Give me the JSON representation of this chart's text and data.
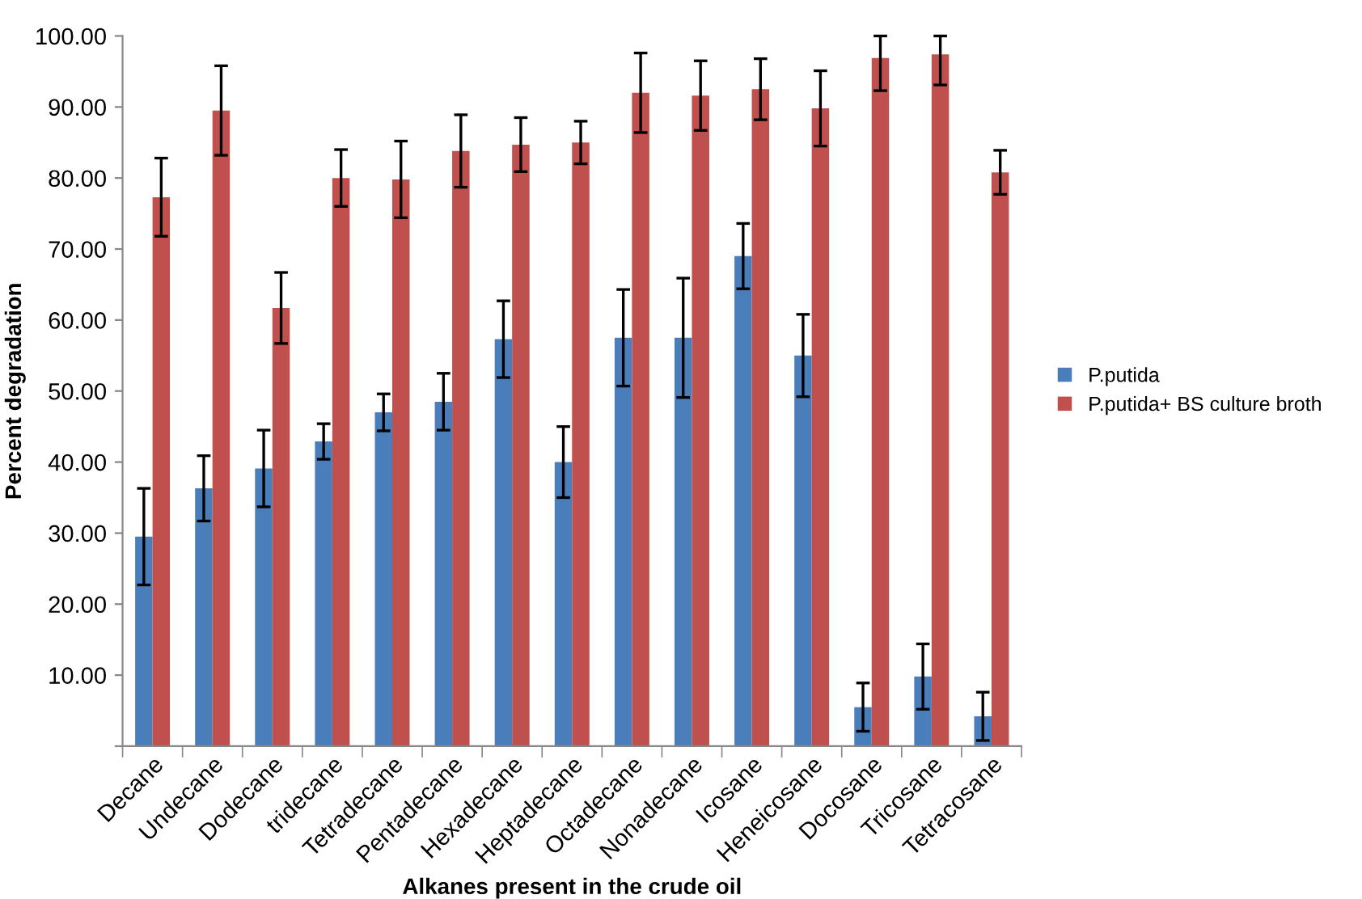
{
  "chart_data": {
    "type": "bar",
    "xlabel": "Alkanes present in the crude oil",
    "ylabel": "Percent degradation",
    "categories": [
      "Decane",
      "Undecane",
      "Dodecane",
      "tridecane",
      "Tetradecane",
      "Pentadecane",
      "Hexadecane",
      "Heptadecane",
      "Octadecane",
      "Nonadecane",
      "Icosane",
      "Heneicosane",
      "Docosane",
      "Tricosane",
      "Tetracosane"
    ],
    "series": [
      {
        "name": "P.putida",
        "color": "#4a7ebb",
        "values": [
          29.5,
          36.3,
          39.1,
          42.9,
          47,
          48.5,
          57.3,
          40,
          57.5,
          57.5,
          69,
          55,
          5.5,
          9.8,
          4.2
        ],
        "errors": [
          6.8,
          4.6,
          5.4,
          2.5,
          2.6,
          4,
          5.4,
          5,
          6.8,
          8.4,
          4.6,
          5.8,
          3.4,
          4.6,
          3.4
        ]
      },
      {
        "name": "P.putida+ BS culture broth",
        "color": "#c0504d",
        "values": [
          77.3,
          89.5,
          61.7,
          80,
          79.8,
          83.8,
          84.7,
          85,
          92,
          91.6,
          92.5,
          89.8,
          96.9,
          97.4,
          80.8
        ],
        "errors": [
          5.5,
          6.3,
          5,
          4,
          5.4,
          5.1,
          3.8,
          3,
          5.6,
          4.9,
          4.3,
          5.3,
          [
            92.3,
            100
          ],
          [
            93.1,
            100
          ],
          3.1
        ]
      }
    ],
    "ylim": [
      0,
      100
    ],
    "yticks": [
      {
        "value": 0,
        "label": null
      },
      {
        "value": 10,
        "label": "10.00"
      },
      {
        "value": 20,
        "label": "20.00"
      },
      {
        "value": 30,
        "label": "30.00"
      },
      {
        "value": 40,
        "label": "40.00"
      },
      {
        "value": 50,
        "label": "50.00"
      },
      {
        "value": 60,
        "label": "60.00"
      },
      {
        "value": 70,
        "label": "70.00"
      },
      {
        "value": 80,
        "label": "80.00"
      },
      {
        "value": 90,
        "label": "90.00"
      },
      {
        "value": 100,
        "label": "100.00"
      }
    ],
    "legend": "right"
  }
}
